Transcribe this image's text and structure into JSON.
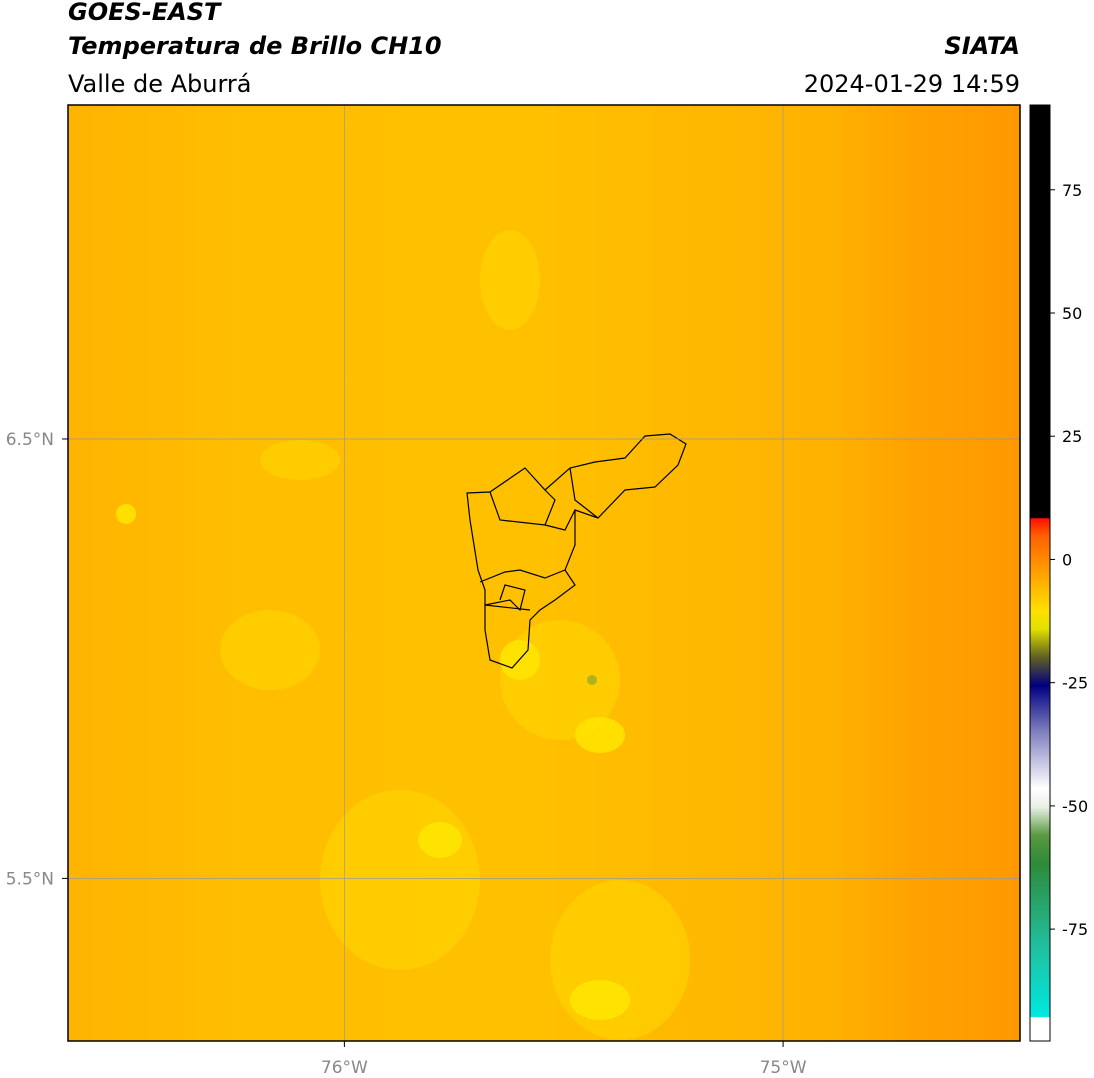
{
  "header": {
    "title": "GOES-EAST",
    "subtitle": "Temperatura de Brillo CH10",
    "region": "Valle de Aburrá",
    "source": "SIATA",
    "datetime": "2024-01-29 14:59"
  },
  "map": {
    "xlim": [
      -76.63,
      -74.46
    ],
    "ylim": [
      5.13,
      7.26
    ],
    "xticks": [
      {
        "value": -76,
        "label": "76°W"
      },
      {
        "value": -75,
        "label": "75°W"
      }
    ],
    "yticks": [
      {
        "value": 6.5,
        "label": "6.5°N"
      },
      {
        "value": 5.5,
        "label": "5.5°N"
      }
    ]
  },
  "colorbar": {
    "lim": [
      -97.7,
      92.2
    ],
    "ticks": [
      75,
      50,
      25,
      0,
      -25,
      -50,
      -75
    ]
  }
}
